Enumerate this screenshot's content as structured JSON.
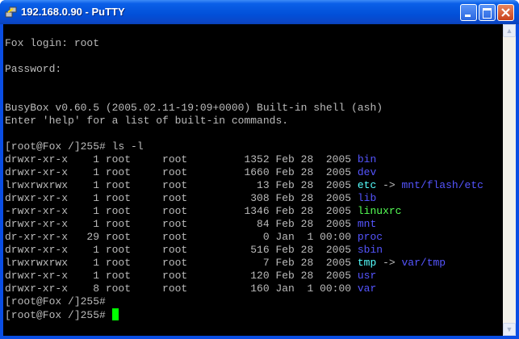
{
  "window": {
    "title": "192.168.0.90 - PuTTY",
    "buttons": {
      "minimize": "minimize",
      "maximize": "maximize",
      "close": "close"
    }
  },
  "colors": {
    "text": "#bbbbbb",
    "directory": "#5555ff",
    "symlink": "#55ffff",
    "executable": "#55ff55",
    "cursor": "#00ff00"
  },
  "terminal": {
    "intro": [
      "",
      "Fox login: root",
      "",
      "Password:",
      "",
      "",
      "BusyBox v0.60.5 (2005.02.11-19:09+0000) Built-in shell (ash)",
      "Enter 'help' for a list of built-in commands.",
      "",
      "[root@Fox /]255# ls -l"
    ],
    "listing": [
      {
        "info": "drwxr-xr-x    1 root     root         1352 Feb 28  2005 ",
        "name": "bin",
        "type": "dir"
      },
      {
        "info": "drwxr-xr-x    1 root     root         1660 Feb 28  2005 ",
        "name": "dev",
        "type": "dir"
      },
      {
        "info": "lrwxrwxrwx    1 root     root           13 Feb 28  2005 ",
        "name": "etc",
        "type": "link",
        "target": "mnt/flash/etc"
      },
      {
        "info": "drwxr-xr-x    1 root     root          308 Feb 28  2005 ",
        "name": "lib",
        "type": "dir"
      },
      {
        "info": "-rwxr-xr-x    1 root     root         1346 Feb 28  2005 ",
        "name": "linuxrc",
        "type": "exec"
      },
      {
        "info": "drwxr-xr-x    1 root     root           84 Feb 28  2005 ",
        "name": "mnt",
        "type": "dir"
      },
      {
        "info": "dr-xr-xr-x   29 root     root            0 Jan  1 00:00 ",
        "name": "proc",
        "type": "dir"
      },
      {
        "info": "drwxr-xr-x    1 root     root          516 Feb 28  2005 ",
        "name": "sbin",
        "type": "dir"
      },
      {
        "info": "lrwxrwxrwx    1 root     root            7 Feb 28  2005 ",
        "name": "tmp",
        "type": "link",
        "target": "var/tmp"
      },
      {
        "info": "drwxr-xr-x    1 root     root          120 Feb 28  2005 ",
        "name": "usr",
        "type": "dir"
      },
      {
        "info": "drwxr-xr-x    8 root     root          160 Jan  1 00:00 ",
        "name": "var",
        "type": "dir"
      }
    ],
    "arrow": " -> ",
    "prompts": [
      "[root@Fox /]255#",
      "[root@Fox /]255# "
    ]
  }
}
